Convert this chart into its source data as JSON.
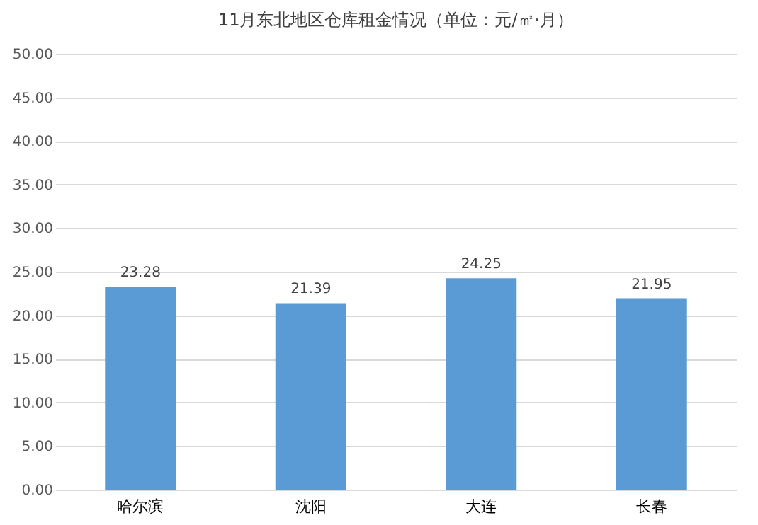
{
  "chart_data": {
    "type": "bar",
    "title": "11月东北地区仓库租金情况（单位：元/㎡·月）",
    "categories": [
      "哈尔滨",
      "沈阳",
      "大连",
      "长春"
    ],
    "values": [
      23.28,
      21.39,
      24.25,
      21.95
    ],
    "color": "#5b9bd5",
    "ylim": [
      0,
      50
    ],
    "yticks": [
      {
        "value": 0,
        "label": "0.00"
      },
      {
        "value": 5,
        "label": "5.00"
      },
      {
        "value": 10,
        "label": "10.00"
      },
      {
        "value": 15,
        "label": "15.00"
      },
      {
        "value": 20,
        "label": "20.00"
      },
      {
        "value": 25,
        "label": "25.00"
      },
      {
        "value": 30,
        "label": "30.00"
      },
      {
        "value": 35,
        "label": "35.00"
      },
      {
        "value": 40,
        "label": "40.00"
      },
      {
        "value": 45,
        "label": "45.00"
      },
      {
        "value": 50,
        "label": "50.00"
      }
    ],
    "grid": "y",
    "data_labels": true
  }
}
